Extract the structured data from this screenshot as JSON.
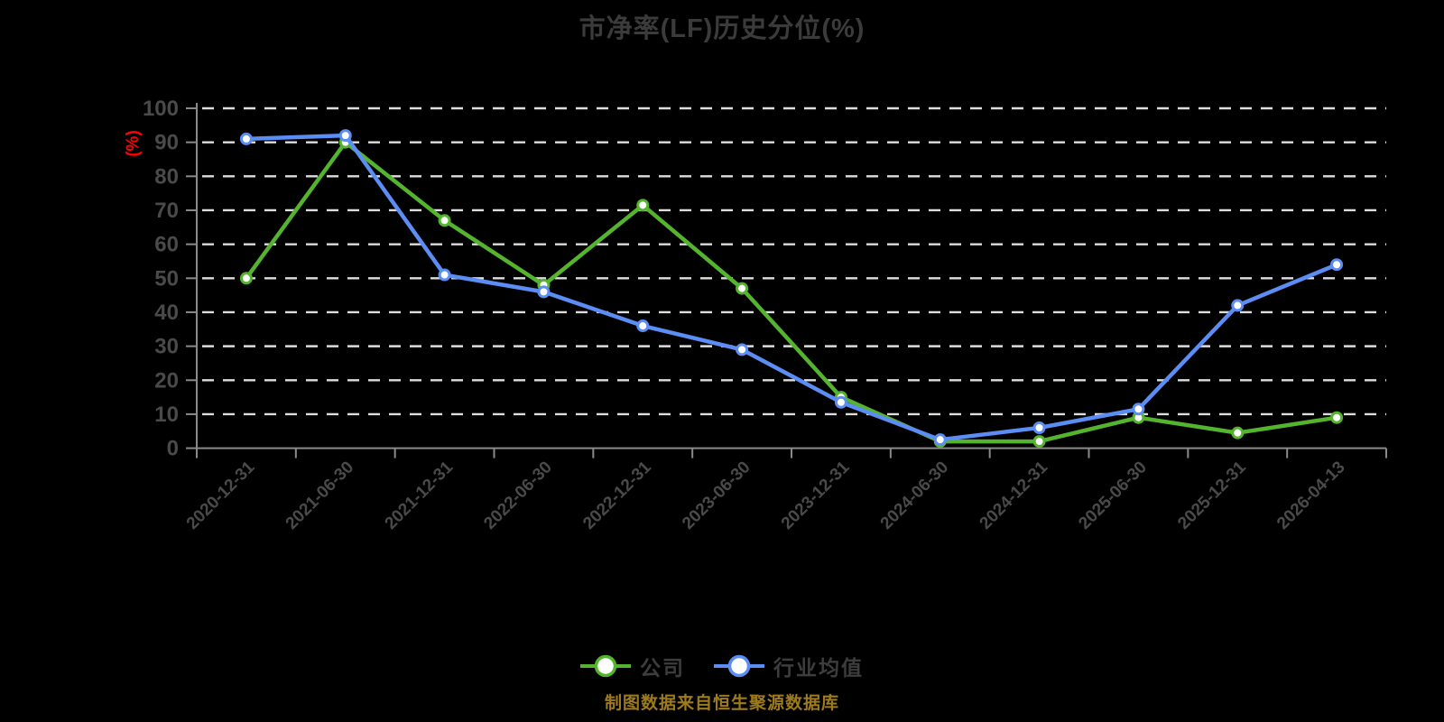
{
  "page": {
    "background_color": "#000000",
    "footer": {
      "text": "制图数据来自恒生聚源数据库",
      "color": "#9d7b1d"
    }
  },
  "chart_data": {
    "type": "line",
    "title": "市净率(LF)历史分位(%)",
    "title_color": "#3b3b3b",
    "ylabel": "(%)",
    "ylabel_color": "#ff0000",
    "ylim": [
      0,
      100
    ],
    "ytick_step": 10,
    "yticks": [
      0,
      10,
      20,
      30,
      40,
      50,
      60,
      70,
      80,
      90,
      100
    ],
    "xtick_rotation_deg": -45,
    "grid": "horizontal-dashed",
    "grid_color": "#dedede",
    "axis_color": "#8a8a8a",
    "tick_label_color": "#4a4a4a",
    "legend_position": "bottom-center",
    "marker_style": "open-circle-white-fill",
    "categories": [
      "2020-12-31",
      "2021-06-30",
      "2021-12-31",
      "2022-06-30",
      "2022-12-31",
      "2023-06-30",
      "2023-12-31",
      "2024-06-30",
      "2024-12-31",
      "2025-06-30",
      "2025-12-31",
      "2026-04-13"
    ],
    "series": [
      {
        "id": "company",
        "name": "公司",
        "color": "#55b42e",
        "values": [
          50,
          90,
          67,
          48,
          71.5,
          47,
          15,
          2,
          2,
          9,
          4.5,
          9
        ]
      },
      {
        "id": "industry-average",
        "name": "行业均值",
        "color": "#5b8df5",
        "values": [
          91,
          92,
          51,
          46,
          36,
          29,
          13.5,
          2.5,
          6,
          11.5,
          42,
          54
        ]
      }
    ]
  }
}
